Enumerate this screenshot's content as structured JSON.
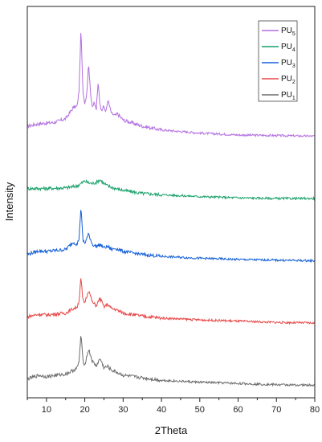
{
  "chart_data": {
    "type": "line",
    "title": "",
    "xlabel": "2Theta",
    "ylabel": "Intensity",
    "xlim": [
      5,
      80
    ],
    "x_ticks": [
      10,
      20,
      30,
      40,
      50,
      60,
      70,
      80
    ],
    "x_tick_labels": [
      "10",
      "20",
      "30",
      "40",
      "50",
      "60",
      "70",
      "80"
    ],
    "y_ticks_shown": false,
    "grid": false,
    "legend_position": "top-right",
    "series": [
      {
        "name": "PU5",
        "label_base": "PU",
        "label_sub": "5",
        "color": "#b36fe0",
        "offset": 4.0,
        "x": [
          5,
          8,
          12,
          15,
          17,
          18,
          18.5,
          19,
          19.5,
          20,
          20.5,
          21,
          21.5,
          22,
          22.5,
          23,
          23.5,
          24,
          24.5,
          25,
          25.5,
          26,
          27,
          28,
          28.5,
          30,
          35,
          40,
          50,
          60,
          70,
          80
        ],
        "y": [
          0.18,
          0.22,
          0.24,
          0.3,
          0.48,
          0.5,
          0.75,
          1.75,
          0.75,
          0.55,
          0.7,
          1.2,
          0.7,
          0.5,
          0.55,
          0.45,
          0.9,
          0.5,
          0.45,
          0.5,
          0.4,
          0.6,
          0.38,
          0.35,
          0.38,
          0.28,
          0.18,
          0.12,
          0.07,
          0.04,
          0.03,
          0.02
        ]
      },
      {
        "name": "PU4",
        "label_base": "PU",
        "label_sub": "4",
        "color": "#1aa06a",
        "offset": 3.0,
        "x": [
          5,
          10,
          15,
          18,
          19,
          20,
          21,
          22,
          23,
          24,
          25,
          26,
          28,
          30,
          35,
          40,
          50,
          60,
          70,
          80
        ],
        "y": [
          0.18,
          0.18,
          0.19,
          0.22,
          0.26,
          0.3,
          0.27,
          0.26,
          0.28,
          0.32,
          0.26,
          0.22,
          0.18,
          0.15,
          0.1,
          0.08,
          0.05,
          0.03,
          0.02,
          0.02
        ]
      },
      {
        "name": "PU3",
        "label_base": "PU",
        "label_sub": "3",
        "color": "#1560d8",
        "offset": 2.0,
        "x": [
          5,
          8,
          10,
          15,
          17,
          18,
          18.5,
          19,
          19.5,
          20,
          21,
          22,
          23,
          24,
          25,
          26,
          27,
          28,
          30,
          35,
          40,
          50,
          60,
          70,
          80
        ],
        "y": [
          0.12,
          0.18,
          0.17,
          0.2,
          0.32,
          0.28,
          0.38,
          0.9,
          0.35,
          0.3,
          0.45,
          0.28,
          0.25,
          0.28,
          0.23,
          0.25,
          0.2,
          0.22,
          0.17,
          0.12,
          0.09,
          0.06,
          0.04,
          0.03,
          0.02
        ]
      },
      {
        "name": "PU2",
        "label_base": "PU",
        "label_sub": "2",
        "color": "#e84848",
        "offset": 1.0,
        "x": [
          5,
          8,
          10,
          15,
          17,
          18,
          18.5,
          19,
          19.5,
          20,
          21,
          22,
          23,
          24,
          25,
          26,
          27,
          28,
          30,
          35,
          40,
          50,
          60,
          70,
          80
        ],
        "y": [
          0.12,
          0.16,
          0.15,
          0.18,
          0.25,
          0.28,
          0.38,
          0.75,
          0.38,
          0.35,
          0.55,
          0.35,
          0.3,
          0.42,
          0.28,
          0.32,
          0.25,
          0.24,
          0.18,
          0.13,
          0.1,
          0.07,
          0.05,
          0.03,
          0.02
        ]
      },
      {
        "name": "PU1",
        "label_base": "PU",
        "label_sub": "1",
        "color": "#6b6b6b",
        "offset": 0.0,
        "x": [
          5,
          8,
          10,
          15,
          17,
          18,
          18.5,
          19,
          19.5,
          20,
          21,
          22,
          23,
          24,
          25,
          26,
          27,
          28,
          30,
          35,
          40,
          50,
          60,
          70,
          80
        ],
        "y": [
          0.12,
          0.18,
          0.16,
          0.2,
          0.26,
          0.3,
          0.4,
          0.85,
          0.42,
          0.35,
          0.6,
          0.4,
          0.33,
          0.45,
          0.3,
          0.32,
          0.26,
          0.24,
          0.18,
          0.14,
          0.1,
          0.07,
          0.05,
          0.03,
          0.02
        ]
      }
    ]
  }
}
